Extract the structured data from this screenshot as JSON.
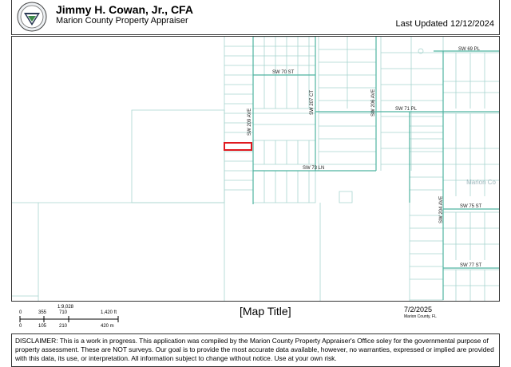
{
  "header": {
    "title": "Jimmy H. Cowan, Jr., CFA",
    "subtitle": "Marion County Property Appraiser",
    "updated": "Last Updated 12/12/2024"
  },
  "map": {
    "streets": {
      "sw69pl": "SW 69 PL",
      "sw70st": "SW 70 ST",
      "sw207ct": "SW 207 CT",
      "sw206ave": "SW 206 AVE",
      "sw71pl": "SW 71 PL",
      "sw209ave": "SW 209 AVE",
      "sw73ln": "SW 73 LN",
      "sw204ave": "SW 204 AVE",
      "sw75st": "SW 75 ST",
      "sw77st": "SW 77 ST"
    },
    "watermark": "Marion Co",
    "highlight_color": "#e0191f",
    "parcel_color": "#a8d5cf"
  },
  "footer": {
    "scale_ratio": "1:9,028",
    "ft_ticks": [
      "0",
      "355",
      "710",
      "1,420 ft"
    ],
    "m_ticks": [
      "0",
      "105",
      "210",
      "420 m"
    ],
    "map_title": "[Map Title]",
    "date": "7/2/2025",
    "county": "Marion County, FL"
  },
  "disclaimer": "DISCLAIMER: This is a work in progress. This application was compiled by the Marion County Property Appraiser's Office soley for the governmental purpose of property assessment. These are NOT surveys. Our goal is to provide the most accurate data available, however, no warranties, expressed or implied are provided with this data, its use, or interpretation. All information subject to change without notice. Use at your own risk."
}
